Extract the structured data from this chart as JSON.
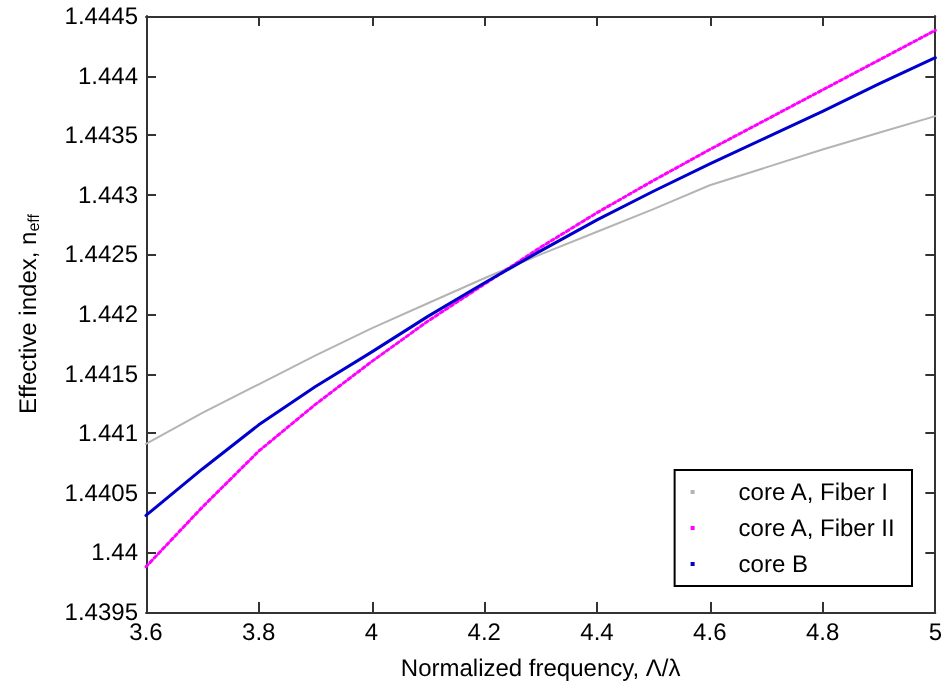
{
  "chart_data": {
    "type": "line",
    "xlabel": "Normalized frequency, Λ/λ",
    "ylabel": "Effective index, n$_{eff}$",
    "x": [
      3.6,
      3.7,
      3.8,
      3.9,
      4.0,
      4.1,
      4.2,
      4.3,
      4.4,
      4.5,
      4.6,
      4.7,
      4.8,
      4.9,
      5.0
    ],
    "series": [
      {
        "name": "core A, Fiber I",
        "color": "#b4b4b4",
        "line_style": "solid",
        "values": [
          1.44091,
          1.44117,
          1.44141,
          1.44165,
          1.44188,
          1.44209,
          1.4423,
          1.4425,
          1.44269,
          1.44288,
          1.44308,
          1.44323,
          1.44338,
          1.44352,
          1.44366
        ]
      },
      {
        "name": "core A, Fiber II",
        "color": "#ff00ff",
        "line_style": "dotted",
        "values": [
          1.43988,
          1.44038,
          1.44085,
          1.44124,
          1.4416,
          1.44194,
          1.44225,
          1.44256,
          1.44285,
          1.44312,
          1.44338,
          1.44363,
          1.44388,
          1.44413,
          1.44438
        ]
      },
      {
        "name": "core B",
        "color": "#0000cc",
        "line_style": "solid",
        "values": [
          1.44031,
          1.4407,
          1.44107,
          1.44139,
          1.44168,
          1.44198,
          1.44226,
          1.44253,
          1.44279,
          1.44303,
          1.44326,
          1.44348,
          1.4437,
          1.44393,
          1.44415
        ]
      }
    ],
    "xlim": [
      3.6,
      5
    ],
    "xticks": [
      3.6,
      3.8,
      4,
      4.2,
      4.4,
      4.6,
      4.8,
      5
    ],
    "ylim": [
      1.4395,
      1.4445
    ],
    "yticks": [
      1.4395,
      1.44,
      1.4405,
      1.441,
      1.4415,
      1.442,
      1.4425,
      1.443,
      1.4435,
      1.444,
      1.4445
    ],
    "grid": false,
    "legend": "bottom right",
    "marker": "none"
  }
}
